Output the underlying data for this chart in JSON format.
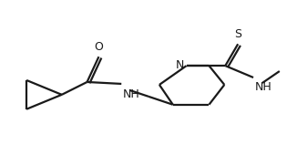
{
  "background": "#ffffff",
  "line_color": "#1a1a1a",
  "line_width": 1.6,
  "figsize": [
    3.26,
    1.7
  ],
  "dpi": 100,
  "atoms": {
    "O": "O",
    "S": "S",
    "N_pip": "N",
    "NH_amide": "NH",
    "NH_thio": "NH"
  }
}
